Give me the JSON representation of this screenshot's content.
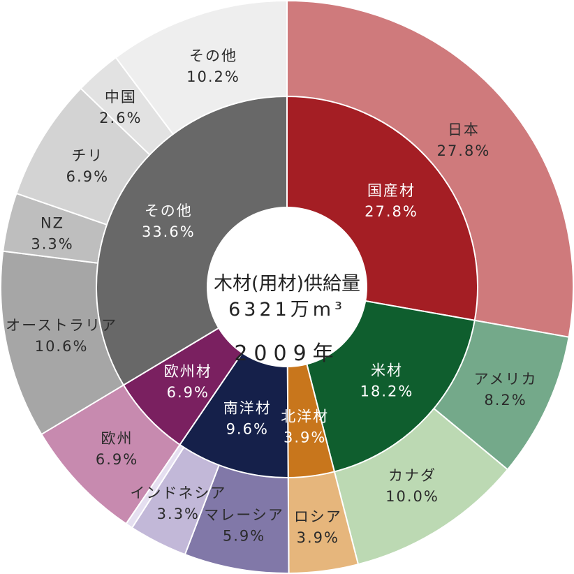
{
  "chart_data": {
    "type": "pie",
    "title": "木材(用材)供給量",
    "subtitle": "6321万m³",
    "year": "2009年",
    "inner": [
      {
        "label": "国産材",
        "value": 27.8,
        "value_label": "27.8%",
        "color": "#a41e24"
      },
      {
        "label": "米材",
        "value": 18.2,
        "value_label": "18.2%",
        "color": "#0f5e2e"
      },
      {
        "label": "北洋材",
        "value": 3.9,
        "value_label": "3.9%",
        "color": "#c8761c"
      },
      {
        "label": "南洋材",
        "value": 9.6,
        "value_label": "9.6%",
        "color": "#15204a"
      },
      {
        "label": "欧州材",
        "value": 6.9,
        "value_label": "6.9%",
        "color": "#7a2060"
      },
      {
        "label": "その他",
        "value": 33.6,
        "value_label": "33.6%",
        "color": "#686868"
      }
    ],
    "outer": [
      {
        "label": "日本",
        "value": 27.8,
        "value_label": "27.8%",
        "color": "#cf7a7c"
      },
      {
        "label": "アメリカ",
        "value": 8.2,
        "value_label": "8.2%",
        "color": "#74a98a"
      },
      {
        "label": "カナダ",
        "value": 10.0,
        "value_label": "10.0%",
        "color": "#bcd9b3"
      },
      {
        "label": "ロシア",
        "value": 3.9,
        "value_label": "3.9%",
        "color": "#e6b67c"
      },
      {
        "label": "マレーシア",
        "value": 5.9,
        "value_label": "5.9%",
        "color": "#8178a8"
      },
      {
        "label": "インドネシア",
        "value": 3.3,
        "value_label": "3.3%",
        "color": "#c2b8d8"
      },
      {
        "label": "",
        "value": 0.4,
        "value_label": "",
        "color": "#e5dff0"
      },
      {
        "label": "欧州",
        "value": 6.9,
        "value_label": "6.9%",
        "color": "#c78aaf"
      },
      {
        "label": "オーストラリア",
        "value": 10.6,
        "value_label": "10.6%",
        "color": "#a6a6a6"
      },
      {
        "label": "NZ",
        "value": 3.3,
        "value_label": "3.3%",
        "color": "#bebebe"
      },
      {
        "label": "チリ",
        "value": 6.9,
        "value_label": "6.9%",
        "color": "#d3d3d3"
      },
      {
        "label": "中国",
        "value": 2.6,
        "value_label": "2.6%",
        "color": "#e2e2e2"
      },
      {
        "label": "その他",
        "value": 10.2,
        "value_label": "10.2%",
        "color": "#eeeeee"
      }
    ]
  }
}
